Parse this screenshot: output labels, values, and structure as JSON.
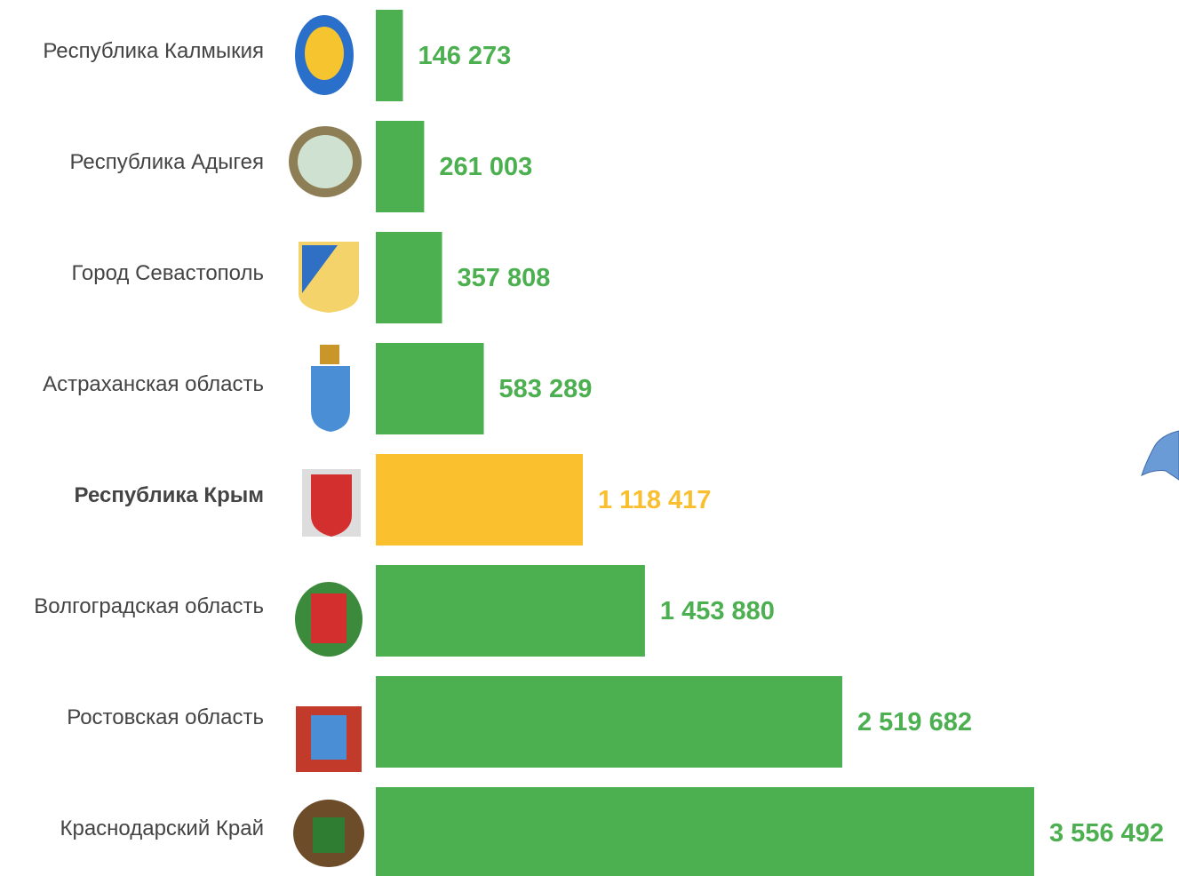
{
  "chart_data": {
    "type": "barh",
    "categories": [
      "Республика Калмыкия",
      "Республика Адыгея",
      "Город Севастополь",
      "Астраханская область",
      "Республика Крым",
      "Волгоградская область",
      "Ростовская область",
      "Краснодарский Край"
    ],
    "values": [
      146273,
      261003,
      357808,
      583289,
      1118417,
      1453880,
      2519682,
      3556492
    ],
    "value_labels": [
      "146 273",
      "261 003",
      "357 808",
      "583 289",
      "1 118 417",
      "1 453 880",
      "2 519 682",
      "3 556 492"
    ],
    "colors": [
      "#4caf50",
      "#4caf50",
      "#4caf50",
      "#4caf50",
      "#fbc02d",
      "#4caf50",
      "#4caf50",
      "#4caf50"
    ],
    "label_colors": [
      "#4caf50",
      "#4caf50",
      "#4caf50",
      "#4caf50",
      "#f9bf2e",
      "#4caf50",
      "#4caf50",
      "#4caf50"
    ],
    "highlight": 4
  }
}
